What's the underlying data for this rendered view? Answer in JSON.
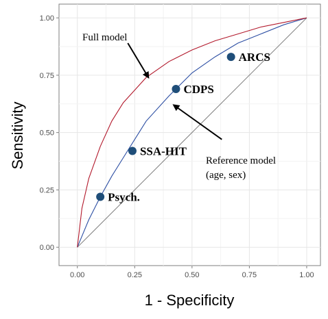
{
  "chart_data": {
    "type": "line",
    "xlabel": "1 - Specificity",
    "ylabel": "Sensitivity",
    "xlim": [
      -0.08,
      1.06
    ],
    "ylim": [
      -0.08,
      1.06
    ],
    "x_ticks": [
      "0.00",
      "0.25",
      "0.50",
      "0.75",
      "1.00"
    ],
    "y_ticks": [
      "0.00",
      "0.25",
      "0.50",
      "0.75",
      "1.00"
    ],
    "grid": true,
    "series": [
      {
        "key": "full",
        "color": "#b2182b",
        "x": [
          0,
          0.02,
          0.05,
          0.1,
          0.15,
          0.2,
          0.3,
          0.4,
          0.5,
          0.6,
          0.7,
          0.8,
          0.9,
          1.0
        ],
        "y": [
          0,
          0.17,
          0.3,
          0.44,
          0.55,
          0.63,
          0.74,
          0.81,
          0.86,
          0.9,
          0.93,
          0.96,
          0.98,
          1.0
        ]
      },
      {
        "key": "reference",
        "color": "#2c4ea3",
        "x": [
          0,
          0.05,
          0.1,
          0.15,
          0.2,
          0.25,
          0.3,
          0.4,
          0.5,
          0.6,
          0.7,
          0.8,
          0.9,
          1.0
        ],
        "y": [
          0,
          0.12,
          0.22,
          0.31,
          0.39,
          0.47,
          0.55,
          0.66,
          0.76,
          0.83,
          0.89,
          0.93,
          0.97,
          1.0
        ]
      },
      {
        "key": "diagonal",
        "color": "#7f7f7f",
        "x": [
          0,
          1
        ],
        "y": [
          0,
          1
        ]
      }
    ],
    "points": [
      {
        "label": "Psych.",
        "x": 0.1,
        "y": 0.22
      },
      {
        "label": "SSA-HIT",
        "x": 0.24,
        "y": 0.42
      },
      {
        "label": "CDPS",
        "x": 0.43,
        "y": 0.69
      },
      {
        "label": "ARCS",
        "x": 0.67,
        "y": 0.83
      }
    ],
    "point_color": "#1f4e79",
    "annotations": [
      {
        "key": "full",
        "lines": [
          "Full model"
        ]
      },
      {
        "key": "reference",
        "lines": [
          "Reference model",
          "(age, sex)"
        ]
      }
    ]
  }
}
